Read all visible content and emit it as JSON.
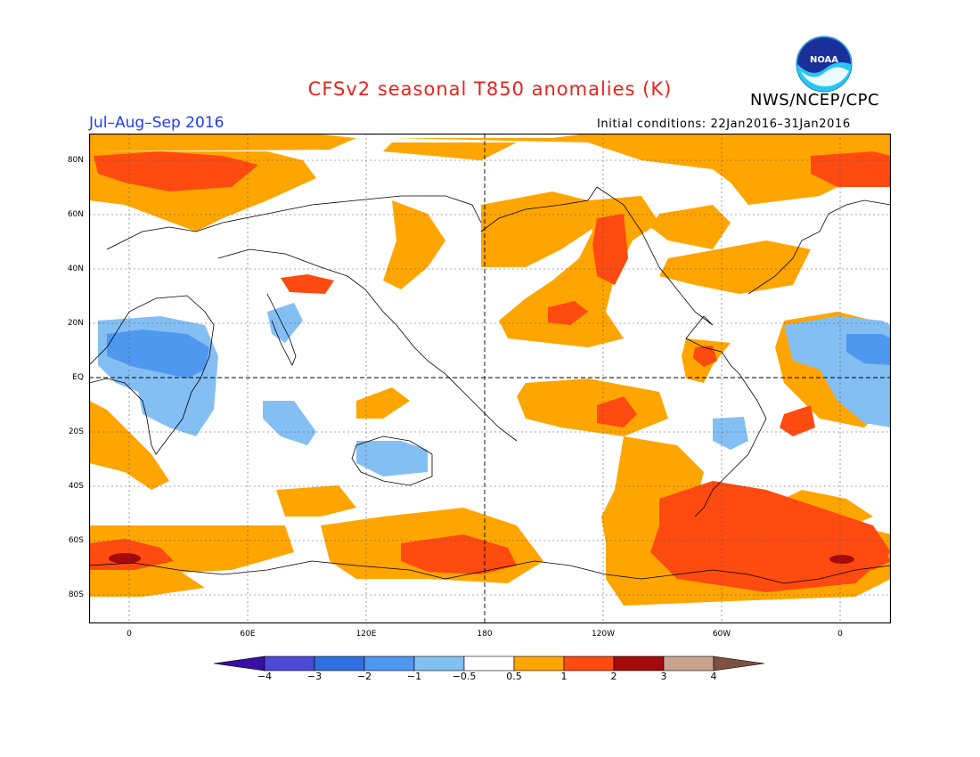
{
  "title": "CFSv2 seasonal T850 anomalies (K)",
  "agency": "NWS/NCEP/CPC",
  "logo_text": "NOAA",
  "season": "Jul–Aug–Sep 2016",
  "initial_conditions": "Initial conditions: 22Jan2016–31Jan2016",
  "lat_labels": [
    "80N",
    "60N",
    "40N",
    "20N",
    "EQ",
    "20S",
    "40S",
    "60S",
    "80S"
  ],
  "lon_labels": [
    "0",
    "60E",
    "120E",
    "180",
    "120W",
    "60W",
    "0"
  ],
  "colorbar": {
    "labels": [
      "−4",
      "−3",
      "−2",
      "−1",
      "−0.5",
      "0.5",
      "1",
      "2",
      "3",
      "4"
    ],
    "colors": [
      "#3a10a4",
      "#4a4ad6",
      "#2f6fe0",
      "#4f98ef",
      "#84bff4",
      "#ffffff",
      "#ffa500",
      "#ff4a10",
      "#a30a0a",
      "#c9a48c",
      "#7d5040"
    ]
  },
  "colors": {
    "title": "#e8231e",
    "season": "#1f3cf0",
    "orange": "#ffa500",
    "red": "#ff4a10",
    "darkred": "#a30a0a",
    "blue1": "#84bff4",
    "blue2": "#4f98ef"
  }
}
